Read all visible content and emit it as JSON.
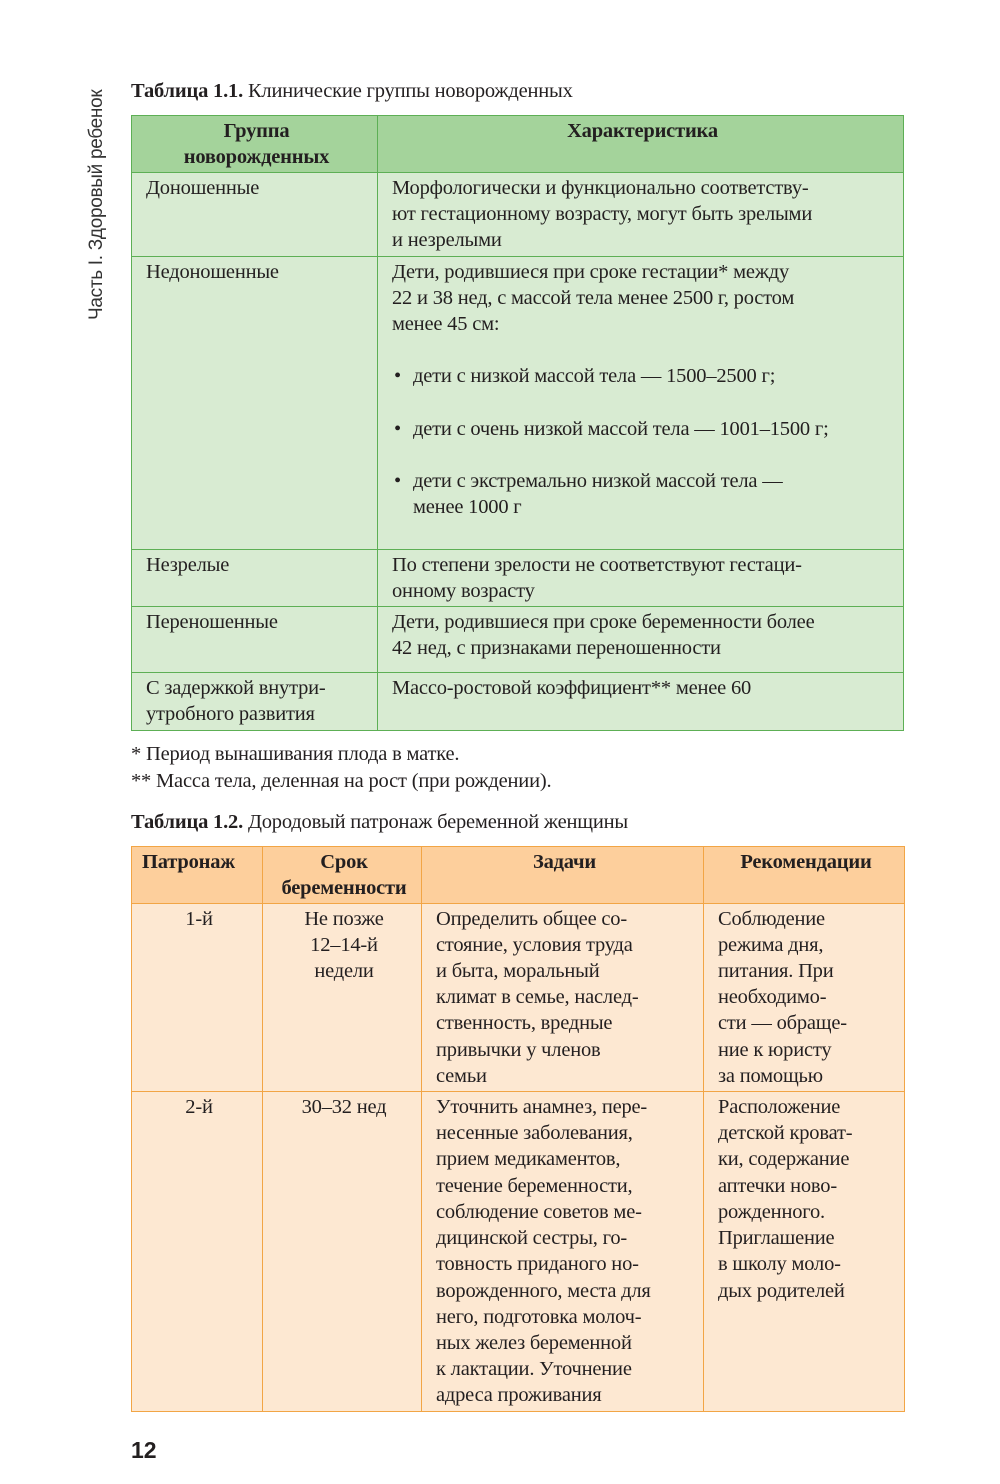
{
  "running_header": "Часть I. Здоровый ребенок",
  "table1": {
    "caption_label": "Таблица 1.1.",
    "caption_text": " Клинические группы новорожденных",
    "headers": [
      "Группа\nноворожденных",
      "Характеристика"
    ],
    "rows": [
      {
        "group": "Доношенные",
        "desc": "Морфологически и функционально соответству-\nют гестационному возрасту, могут быть зрелыми\nи незрелыми"
      },
      {
        "group": "Недоношенные",
        "desc": "Дети, родившиеся при сроке гестации* между\n22  и 38 нед, с массой тела менее 2500 г, ростом\nменее 45 см:",
        "bullets": [
          "дети с низкой массой тела — 1500–2500 г;",
          "дети с очень низкой массой тела — 1001–1500 г;",
          "дети с экстремально низкой массой тела —\nменее 1000 г"
        ]
      },
      {
        "group": "Незрелые",
        "desc": "По степени зрелости не соответствуют гестаци-\nонному возрасту"
      },
      {
        "group": "Переношенные",
        "desc": "Дети, родившиеся при сроке беременности более\n42 нед, с признаками переношенности"
      },
      {
        "group": "С задержкой внутри-\nутробного развития",
        "desc": "Массо-ростовой коэффициент** менее 60"
      }
    ]
  },
  "footnotes": [
    "* Период вынашивания плода в матке.",
    "** Масса тела, деленная на рост (при рождении)."
  ],
  "table2": {
    "caption_label": "Таблица 1.2.",
    "caption_text": " Дородовый патронаж беременной женщины",
    "headers": [
      "Патронаж",
      "Срок\nбеременности",
      "Задачи",
      "Рекомендации"
    ],
    "rows": [
      {
        "visit": "1-й",
        "term": "Не позже\n12–14-й\nнедели",
        "tasks": "Определить общее со-\nстояние, условия труда\nи быта, моральный\nклимат в семье, наслед-\nственность, вредные\nпривычки у членов\nсемьи",
        "recs": "Соблюдение\nрежима дня,\nпитания. При\nнеобходимо-\nсти — обраще-\nние к юристу\nза помощью"
      },
      {
        "visit": "2-й",
        "term": "30–32 нед",
        "tasks": "Уточнить анамнез, пере-\nнесенные заболевания,\nприем медикаментов,\nтечение беременности,\nсоблюдение советов ме-\nдицинской сестры, го-\nтовность приданого но-\nворожденного, места для\nнего, подготовка молоч-\nных желез беременной\nк лактации. Уточнение\nадреса проживания",
        "recs": "Расположение\nдетской кроват-\nки, содержание\nаптечки ново-\nрожденного.\nПриглашение\nв школу моло-\nдых родителей"
      }
    ]
  },
  "page_number": "12",
  "colors": {
    "green_header": "#a4d39b",
    "green_body": "#d8ebd2",
    "green_border": "#5daf55",
    "orange_header": "#fdcf9c",
    "orange_body": "#fde8d2",
    "orange_border": "#f2a545"
  }
}
